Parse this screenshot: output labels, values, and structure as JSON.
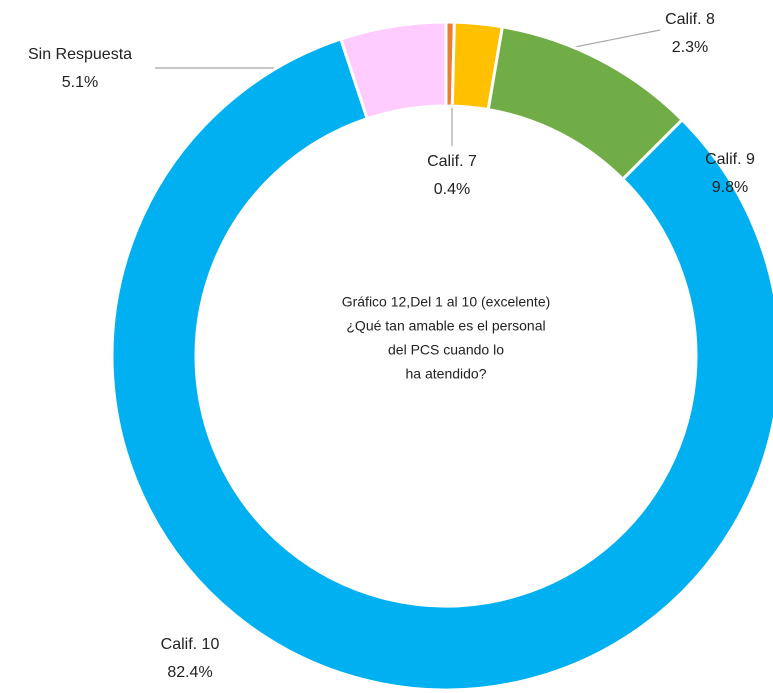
{
  "chart_data": {
    "type": "donut",
    "title": [
      "Gráfico 12,Del 1 al 10 (excelente)",
      "¿Qué tan amable es el personal",
      "del PCS cuando lo",
      "ha atendido?"
    ],
    "categories": [
      "Calif. 7",
      "Calif. 8",
      "Calif. 9",
      "Calif. 10",
      "Sin Respuesta"
    ],
    "values": [
      0.4,
      2.3,
      9.8,
      82.4,
      5.1
    ],
    "value_labels": [
      "0.4%",
      "2.3%",
      "9.8%",
      "82.4%",
      "5.1%"
    ],
    "colors": [
      "#ED7D31",
      "#FFC000",
      "#70AD47",
      "#00B0F0",
      "#FFCCFF"
    ]
  }
}
